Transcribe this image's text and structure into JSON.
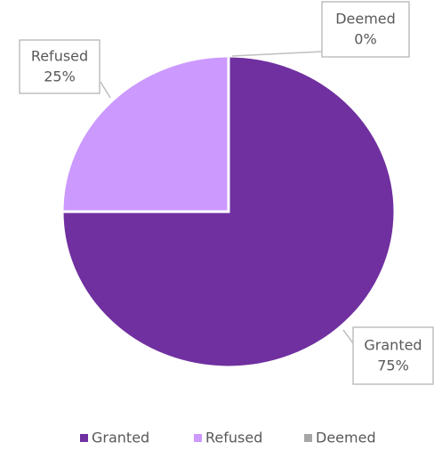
{
  "chart_data": {
    "type": "pie",
    "categories": [
      "Granted",
      "Refused",
      "Deemed"
    ],
    "values": [
      75,
      25,
      0
    ],
    "value_labels": [
      "75%",
      "25%",
      "0%"
    ],
    "colors": [
      "#7030a0",
      "#cc99ff",
      "#a6a6a6"
    ],
    "legend": "bottom"
  }
}
